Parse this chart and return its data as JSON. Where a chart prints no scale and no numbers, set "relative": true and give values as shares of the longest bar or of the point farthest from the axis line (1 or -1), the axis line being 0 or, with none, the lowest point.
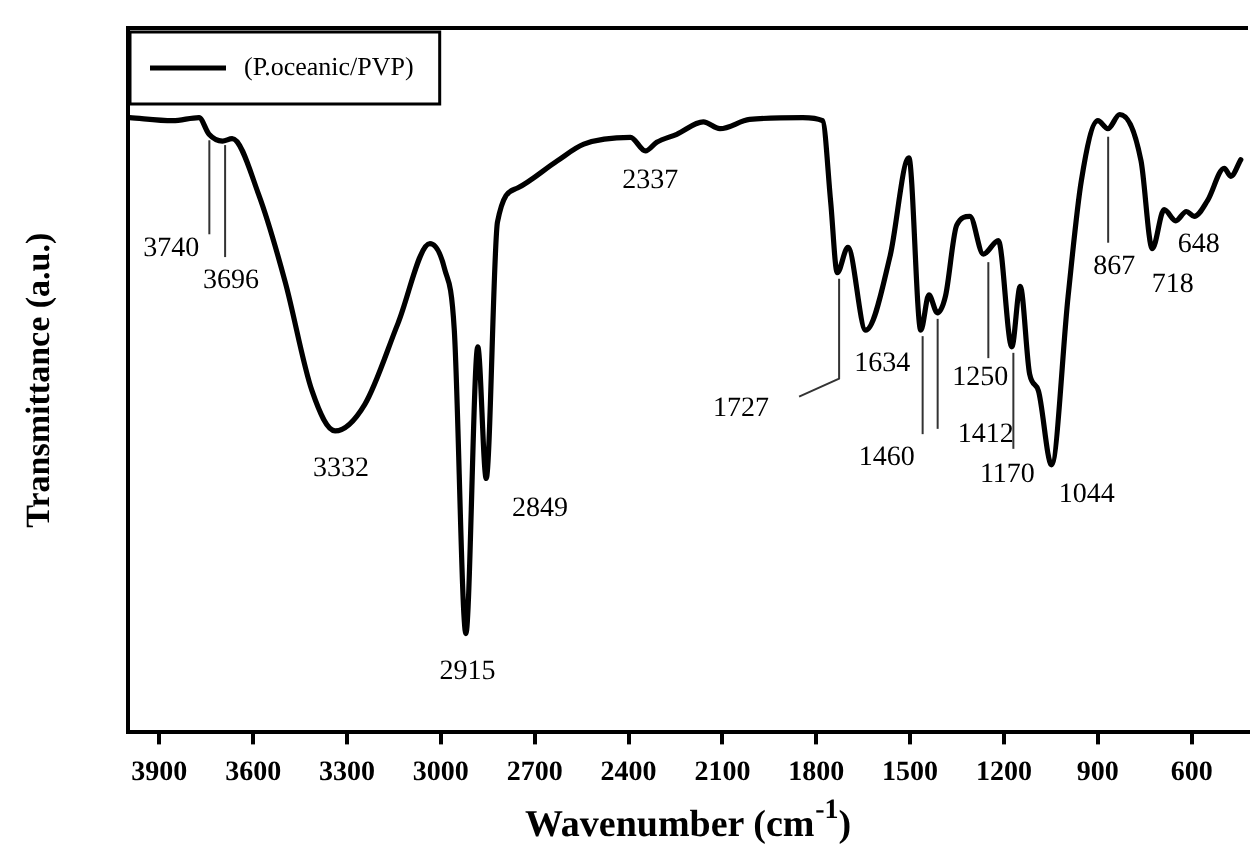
{
  "chart_data": {
    "type": "line",
    "xlabel": "Wavenumber (cm$^{-1}$)",
    "ylabel": "Transmittance (a.u.)",
    "relative": true,
    "legend": "top left",
    "marker": "none",
    "line_style": "solid",
    "grid": false,
    "xlim": [
      4000,
      420
    ],
    "xticks": [
      3900,
      3600,
      3300,
      3000,
      2700,
      2400,
      2100,
      1800,
      1500,
      1200,
      900,
      600
    ],
    "series": [
      {
        "name": "(P.oceanic/PVP)",
        "color": "#000000",
        "x": [
          3995,
          3857,
          3773,
          3741,
          3698,
          3667,
          3582,
          3497,
          3412,
          3338,
          3243,
          3137,
          3035,
          2988,
          2957,
          2920,
          2882,
          2855,
          2819,
          2755,
          2628,
          2543,
          2394,
          2346,
          2310,
          2246,
          2161,
          2108,
          2013,
          1843,
          1780,
          1754,
          1733,
          1699,
          1642,
          1564,
          1504,
          1466,
          1440,
          1413,
          1387,
          1351,
          1309,
          1266,
          1218,
          1175,
          1148,
          1118,
          1090,
          1048,
          995,
          953,
          900,
          868,
          830,
          762,
          726,
          688,
          651,
          617,
          592,
          549,
          496,
          475,
          443
        ],
        "values": [
          0.995,
          0.99,
          0.995,
          0.968,
          0.957,
          0.961,
          0.87,
          0.728,
          0.553,
          0.488,
          0.531,
          0.662,
          0.791,
          0.75,
          0.651,
          0.16,
          0.624,
          0.411,
          0.826,
          0.881,
          0.925,
          0.952,
          0.963,
          0.941,
          0.955,
          0.968,
          0.988,
          0.977,
          0.992,
          0.995,
          0.99,
          0.859,
          0.744,
          0.785,
          0.651,
          0.771,
          0.93,
          0.651,
          0.708,
          0.679,
          0.706,
          0.821,
          0.835,
          0.774,
          0.796,
          0.624,
          0.722,
          0.58,
          0.553,
          0.433,
          0.706,
          0.892,
          0.99,
          0.977,
          1.0,
          0.925,
          0.783,
          0.846,
          0.828,
          0.843,
          0.835,
          0.861,
          0.913,
          0.9,
          0.927
        ]
      }
    ],
    "annotations": [
      {
        "text": "3740",
        "x": 3740,
        "y": 0.968
      },
      {
        "text": "3696",
        "x": 3696,
        "y": 0.957
      },
      {
        "text": "3332",
        "x": 3332,
        "y": 0.488
      },
      {
        "text": "2915",
        "x": 2915,
        "y": 0.16
      },
      {
        "text": "2849",
        "x": 2849,
        "y": 0.411
      },
      {
        "text": "2337",
        "x": 2337,
        "y": 0.941
      },
      {
        "text": "1727",
        "x": 1727,
        "y": 0.744
      },
      {
        "text": "1634",
        "x": 1634,
        "y": 0.651
      },
      {
        "text": "1460",
        "x": 1460,
        "y": 0.651
      },
      {
        "text": "1412",
        "x": 1412,
        "y": 0.679
      },
      {
        "text": "1250",
        "x": 1250,
        "y": 0.774
      },
      {
        "text": "1170",
        "x": 1170,
        "y": 0.624
      },
      {
        "text": "1044",
        "x": 1044,
        "y": 0.433
      },
      {
        "text": "867",
        "x": 867,
        "y": 0.977
      },
      {
        "text": "718",
        "x": 718,
        "y": 0.783
      },
      {
        "text": "648",
        "x": 648,
        "y": 0.835
      }
    ]
  }
}
